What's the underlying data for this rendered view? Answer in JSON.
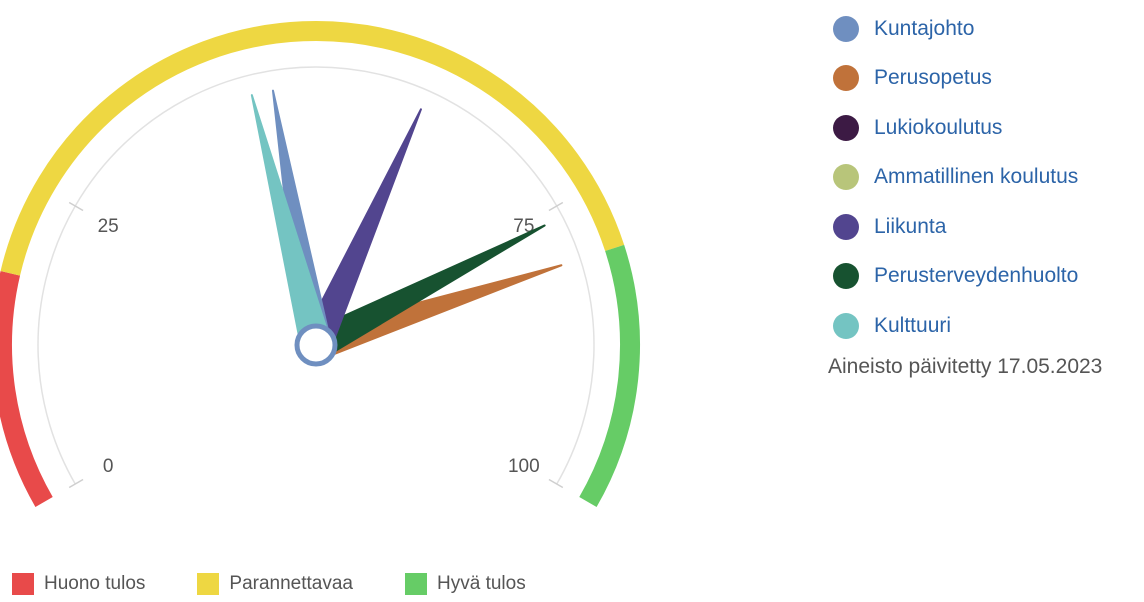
{
  "chart_data": {
    "type": "gauge",
    "min": 0,
    "max": 100,
    "ticks": [
      {
        "value": 0,
        "label": "0"
      },
      {
        "value": 25,
        "label": "25"
      },
      {
        "value": 75,
        "label": "75"
      },
      {
        "value": 100,
        "label": "100"
      }
    ],
    "bands": [
      {
        "from": 0,
        "to": 18,
        "label": "Huono tulos",
        "color": "#e84a4a"
      },
      {
        "from": 18,
        "to": 80,
        "label": "Parannettavaa",
        "color": "#eed742"
      },
      {
        "from": 80,
        "to": 100,
        "label": "Hyvä tulos",
        "color": "#66cc66"
      }
    ],
    "series": [
      {
        "name": "Kuntajohto",
        "value": 46,
        "color": "#6f8fc0"
      },
      {
        "name": "Perusopetus",
        "value": 80,
        "color": "#c0723a"
      },
      {
        "name": "Lukiokoulutus",
        "value": null,
        "color": "#3c1a44"
      },
      {
        "name": "Ammatillinen koulutus",
        "value": null,
        "color": "#b8c57a"
      },
      {
        "name": "Liikunta",
        "value": 60,
        "color": "#52458f"
      },
      {
        "name": "Perusterveydenhuolto",
        "value": 76,
        "color": "#175230"
      },
      {
        "name": "Kulttuuri",
        "value": 44,
        "color": "#74c4c2"
      }
    ]
  },
  "updated_text": "Aineisto päivitetty 17.05.2023"
}
